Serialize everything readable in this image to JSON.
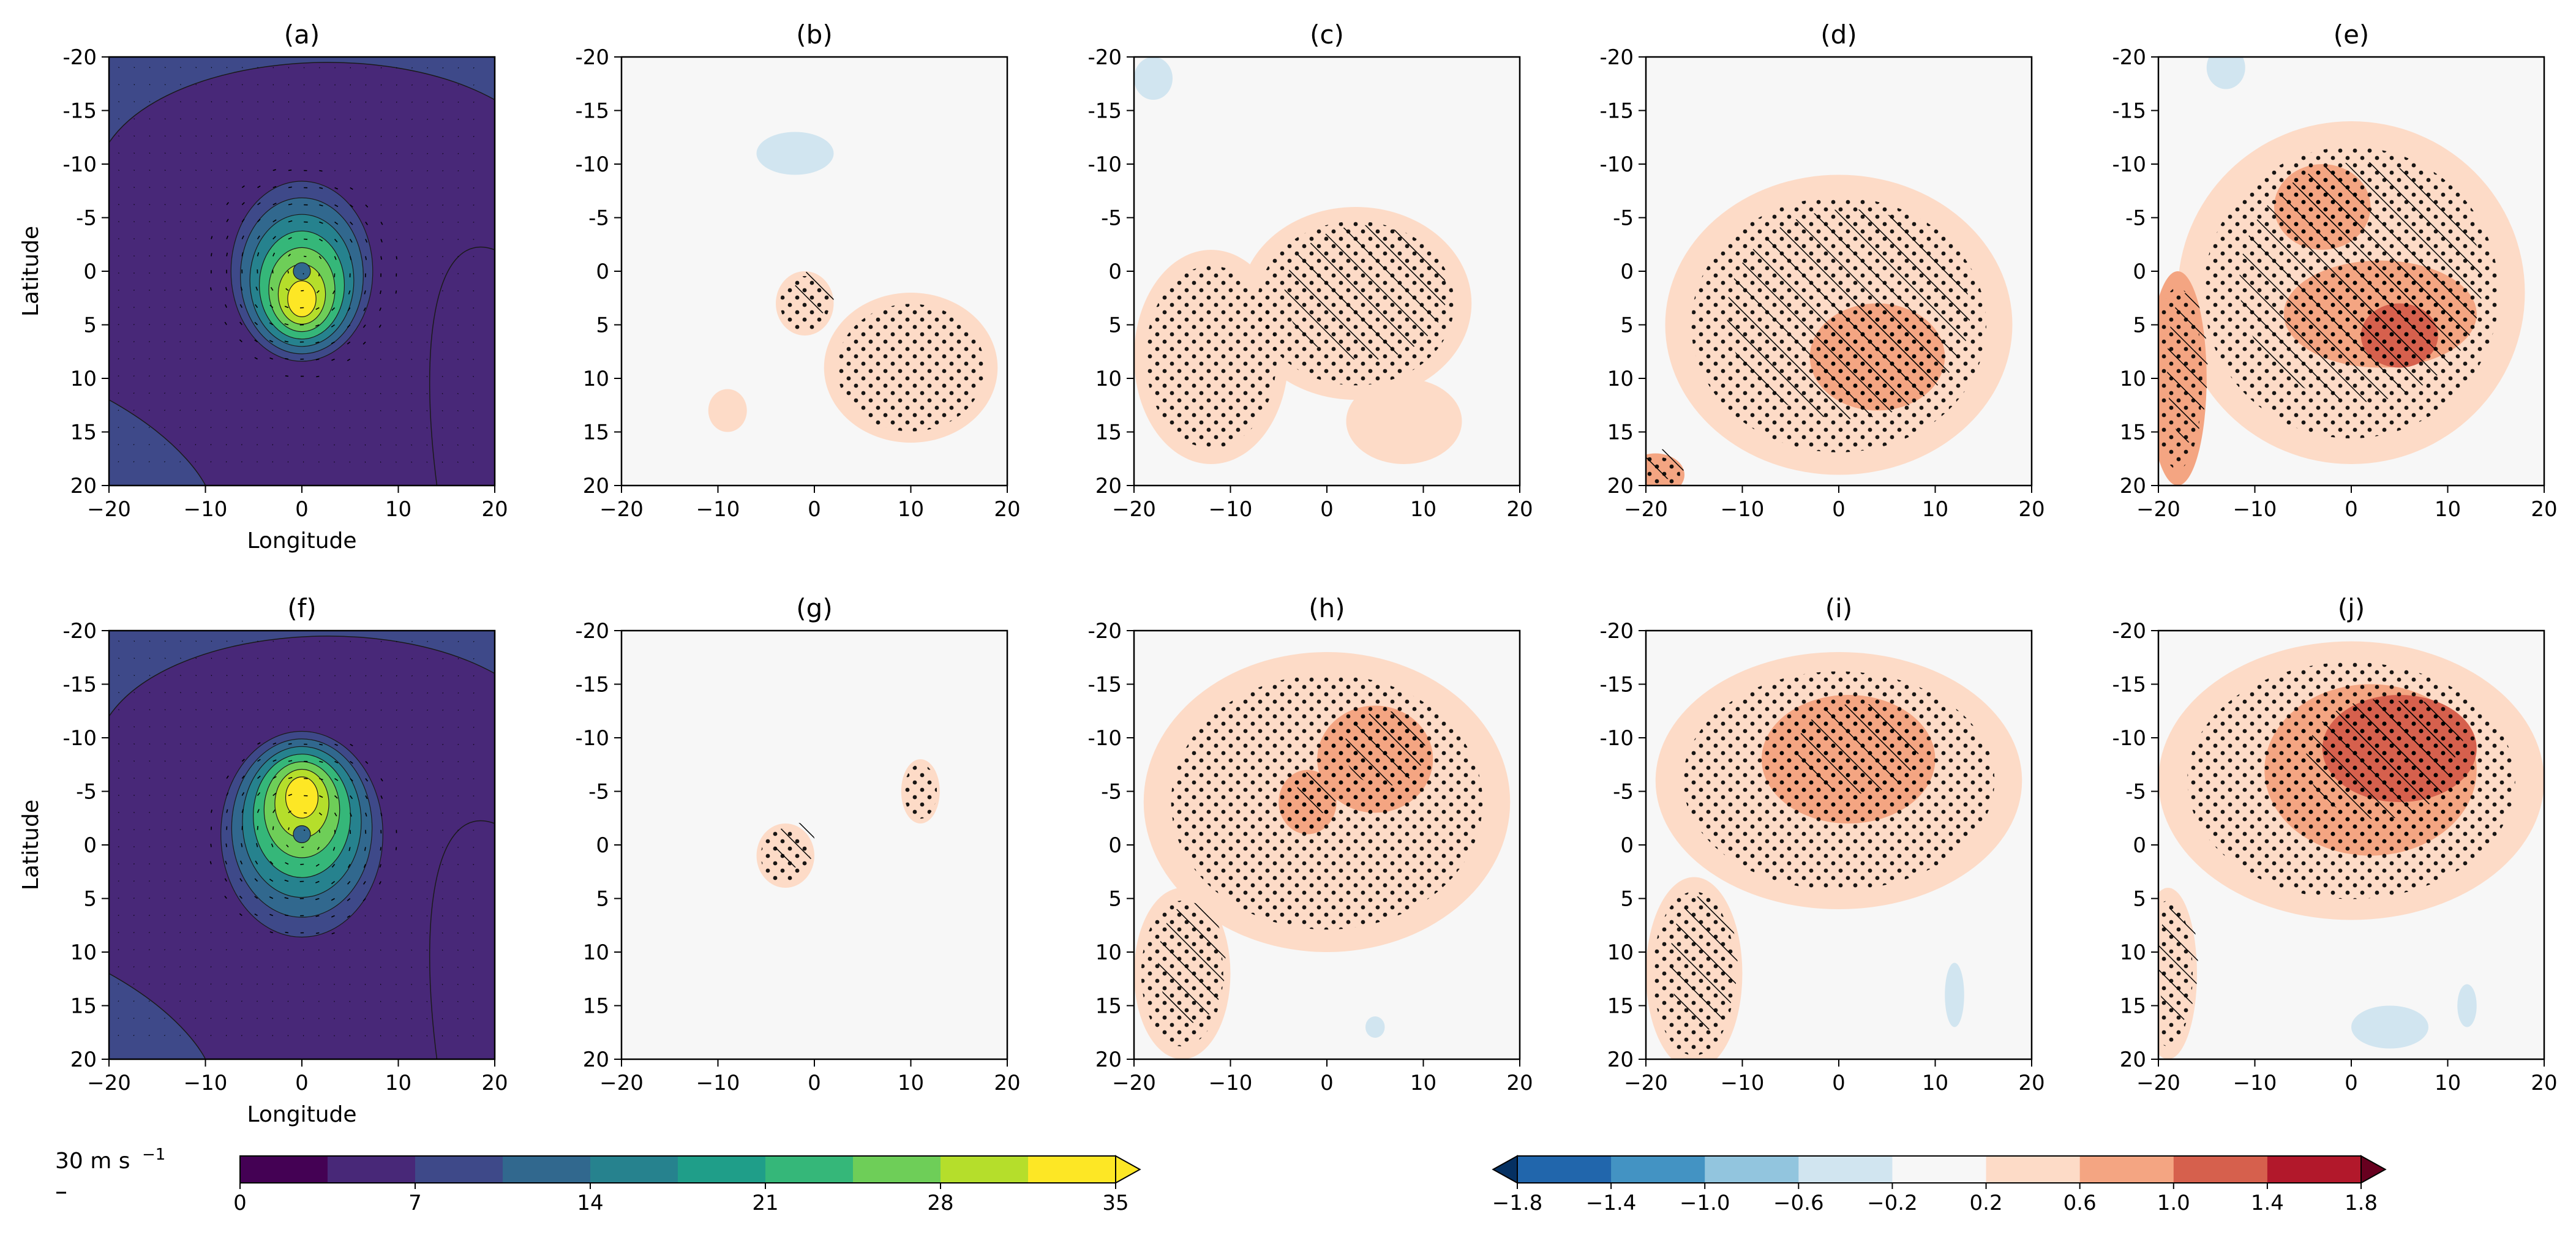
{
  "chart_data": {
    "type": "heatmap",
    "panels": [
      {
        "id": "a",
        "title": "(a)",
        "kind": "windspeed",
        "row": 0,
        "col": 0,
        "show_xlabel": true,
        "show_ylabel": true,
        "center": [
          0,
          0
        ],
        "size": 7,
        "peak_offset": [
          0,
          3
        ]
      },
      {
        "id": "b",
        "title": "(b)",
        "kind": "diff",
        "row": 0,
        "col": 1,
        "show_xlabel": false,
        "show_ylabel": false,
        "blobs": [
          {
            "x": 10,
            "y": 9,
            "rx": 9,
            "ry": 7,
            "v": 0.45
          },
          {
            "x": -1,
            "y": 3,
            "rx": 3,
            "ry": 3,
            "v": 0.35
          },
          {
            "x": -9,
            "y": 13,
            "rx": 2,
            "ry": 2,
            "v": 0.3
          },
          {
            "x": -2,
            "y": -11,
            "rx": 4,
            "ry": 2,
            "v": -0.35
          }
        ]
      },
      {
        "id": "c",
        "title": "(c)",
        "kind": "diff",
        "row": 0,
        "col": 2,
        "show_xlabel": false,
        "show_ylabel": false,
        "blobs": [
          {
            "x": -12,
            "y": 8,
            "rx": 8,
            "ry": 10,
            "v": 0.45
          },
          {
            "x": 3,
            "y": 3,
            "rx": 12,
            "ry": 9,
            "v": 0.4
          },
          {
            "x": 8,
            "y": 14,
            "rx": 6,
            "ry": 4,
            "v": 0.3
          },
          {
            "x": -18,
            "y": -18,
            "rx": 2,
            "ry": 2,
            "v": -0.3
          }
        ]
      },
      {
        "id": "d",
        "title": "(d)",
        "kind": "diff",
        "row": 0,
        "col": 3,
        "show_xlabel": false,
        "show_ylabel": false,
        "blobs": [
          {
            "x": 0,
            "y": 5,
            "rx": 18,
            "ry": 14,
            "v": 0.45
          },
          {
            "x": 4,
            "y": 8,
            "rx": 7,
            "ry": 5,
            "v": 0.85
          },
          {
            "x": -19,
            "y": 19,
            "rx": 3,
            "ry": 2,
            "v": 0.7
          }
        ]
      },
      {
        "id": "e",
        "title": "(e)",
        "kind": "diff",
        "row": 0,
        "col": 4,
        "show_xlabel": false,
        "show_ylabel": false,
        "blobs": [
          {
            "x": 0,
            "y": 2,
            "rx": 18,
            "ry": 16,
            "v": 0.45
          },
          {
            "x": 3,
            "y": 4,
            "rx": 10,
            "ry": 5,
            "v": 0.8
          },
          {
            "x": 5,
            "y": 6,
            "rx": 4,
            "ry": 3,
            "v": 1.15
          },
          {
            "x": -18,
            "y": 10,
            "rx": 3,
            "ry": 10,
            "v": 0.75
          },
          {
            "x": -3,
            "y": -6,
            "rx": 5,
            "ry": 4,
            "v": 0.75
          },
          {
            "x": -13,
            "y": -19,
            "rx": 2,
            "ry": 2,
            "v": -0.3
          }
        ]
      },
      {
        "id": "f",
        "title": "(f)",
        "kind": "windspeed",
        "row": 1,
        "col": 0,
        "show_xlabel": true,
        "show_ylabel": true,
        "center": [
          0,
          -1
        ],
        "size": 8,
        "peak_offset": [
          0,
          -4
        ]
      },
      {
        "id": "g",
        "title": "(g)",
        "kind": "diff",
        "row": 1,
        "col": 1,
        "show_xlabel": false,
        "show_ylabel": false,
        "blobs": [
          {
            "x": -3,
            "y": 1,
            "rx": 3,
            "ry": 3,
            "v": 0.4
          },
          {
            "x": 11,
            "y": -5,
            "rx": 2,
            "ry": 3,
            "v": 0.4
          }
        ]
      },
      {
        "id": "h",
        "title": "(h)",
        "kind": "diff",
        "row": 1,
        "col": 2,
        "show_xlabel": false,
        "show_ylabel": false,
        "blobs": [
          {
            "x": 0,
            "y": -4,
            "rx": 19,
            "ry": 14,
            "v": 0.45
          },
          {
            "x": -15,
            "y": 12,
            "rx": 5,
            "ry": 8,
            "v": 0.4
          },
          {
            "x": 5,
            "y": -8,
            "rx": 6,
            "ry": 5,
            "v": 0.75
          },
          {
            "x": -2,
            "y": -4,
            "rx": 3,
            "ry": 3,
            "v": 0.7
          },
          {
            "x": 5,
            "y": 17,
            "rx": 1,
            "ry": 1,
            "v": -0.3
          }
        ]
      },
      {
        "id": "i",
        "title": "(i)",
        "kind": "diff",
        "row": 1,
        "col": 3,
        "show_xlabel": false,
        "show_ylabel": false,
        "blobs": [
          {
            "x": 0,
            "y": -6,
            "rx": 19,
            "ry": 12,
            "v": 0.45
          },
          {
            "x": -15,
            "y": 12,
            "rx": 5,
            "ry": 9,
            "v": 0.4
          },
          {
            "x": 1,
            "y": -8,
            "rx": 9,
            "ry": 6,
            "v": 0.8
          },
          {
            "x": 12,
            "y": 14,
            "rx": 1,
            "ry": 3,
            "v": -0.35
          }
        ]
      },
      {
        "id": "j",
        "title": "(j)",
        "kind": "diff",
        "row": 1,
        "col": 4,
        "show_xlabel": false,
        "show_ylabel": false,
        "blobs": [
          {
            "x": 0,
            "y": -6,
            "rx": 20,
            "ry": 13,
            "v": 0.5
          },
          {
            "x": 2,
            "y": -7,
            "rx": 11,
            "ry": 8,
            "v": 0.85
          },
          {
            "x": 5,
            "y": -9,
            "rx": 8,
            "ry": 5,
            "v": 1.25
          },
          {
            "x": -19,
            "y": 12,
            "rx": 3,
            "ry": 8,
            "v": 0.4
          },
          {
            "x": 4,
            "y": 17,
            "rx": 4,
            "ry": 2,
            "v": -0.35
          },
          {
            "x": 12,
            "y": 15,
            "rx": 1,
            "ry": 2,
            "v": -0.35
          }
        ]
      }
    ],
    "x_ticks": [
      -20,
      -10,
      0,
      10,
      20
    ],
    "x_tick_labels": [
      "−20",
      "−10",
      "0",
      "10",
      "20"
    ],
    "y_ticks": [
      -20,
      -15,
      -10,
      -5,
      0,
      5,
      10,
      15,
      20
    ],
    "y_tick_labels": [
      "-20",
      "-15",
      "-10",
      "-5",
      "0",
      "5",
      "10",
      "15",
      "20"
    ],
    "xlim": [
      -20,
      20
    ],
    "ylim": [
      -20,
      20
    ],
    "xlabel": "Longitude",
    "ylabel": "Latitude",
    "colorbar_wind": {
      "levels": [
        0,
        3.5,
        7,
        10.5,
        14,
        17.5,
        21,
        24.5,
        28,
        31.5,
        35
      ],
      "tick_values": [
        0,
        7,
        14,
        21,
        28,
        35
      ],
      "tick_labels": [
        "0",
        "7",
        "14",
        "21",
        "28",
        "35"
      ],
      "extend": "max",
      "colors": [
        "#440154",
        "#482878",
        "#3e4989",
        "#31688e",
        "#26828e",
        "#1f9e89",
        "#35b779",
        "#6ece58",
        "#b5de2b",
        "#fde725",
        "#fde725"
      ]
    },
    "colorbar_diff": {
      "levels": [
        -1.8,
        -1.4,
        -1.0,
        -0.6,
        -0.2,
        0.2,
        0.6,
        1.0,
        1.4,
        1.8
      ],
      "tick_values": [
        -1.8,
        -1.4,
        -1.0,
        -0.6,
        -0.2,
        0.2,
        0.6,
        1.0,
        1.4,
        1.8
      ],
      "tick_labels": [
        "−1.8",
        "−1.4",
        "−1.0",
        "−0.6",
        "−0.2",
        "0.2",
        "0.6",
        "1.0",
        "1.4",
        "1.8"
      ],
      "extend": "both",
      "colors": [
        "#053061",
        "#2166ac",
        "#4393c3",
        "#92c5de",
        "#d1e5f0",
        "#f7f7f7",
        "#fddbc7",
        "#f4a582",
        "#d6604d",
        "#b2182b",
        "#67001f"
      ]
    },
    "quiver_key_label": "30 m s",
    "quiver_key_unit_exponent": "−1"
  }
}
